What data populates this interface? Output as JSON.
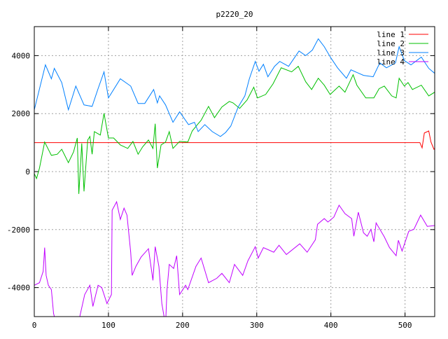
{
  "chart_data": {
    "type": "line",
    "title": "p2220_20",
    "xlabel": "",
    "ylabel": "",
    "xlim": [
      0,
      540
    ],
    "ylim": [
      -5000,
      5000
    ],
    "xticks": [
      0,
      100,
      200,
      300,
      400,
      500
    ],
    "yticks": [
      -4000,
      -2000,
      0,
      2000,
      4000
    ],
    "grid": true,
    "legend_position": "top-right",
    "series": [
      {
        "name": "line 1",
        "color": "#ff0000",
        "points": [
          [
            0,
            1000
          ],
          [
            520,
            1000
          ],
          [
            523,
            820
          ],
          [
            526,
            1330
          ],
          [
            532,
            1400
          ],
          [
            535,
            1020
          ],
          [
            539,
            770
          ],
          [
            540,
            800
          ]
        ]
      },
      {
        "name": "line 2",
        "color": "#00c000",
        "points": [
          [
            0,
            -70
          ],
          [
            3,
            -240
          ],
          [
            7,
            120
          ],
          [
            14,
            1020
          ],
          [
            23,
            560
          ],
          [
            31,
            600
          ],
          [
            37,
            770
          ],
          [
            46,
            310
          ],
          [
            53,
            680
          ],
          [
            58,
            1160
          ],
          [
            60,
            -770
          ],
          [
            64,
            970
          ],
          [
            67,
            -680
          ],
          [
            72,
            1090
          ],
          [
            75,
            1210
          ],
          [
            78,
            600
          ],
          [
            81,
            1380
          ],
          [
            89,
            1260
          ],
          [
            94,
            2010
          ],
          [
            100,
            1160
          ],
          [
            107,
            1160
          ],
          [
            116,
            920
          ],
          [
            126,
            800
          ],
          [
            133,
            1040
          ],
          [
            140,
            600
          ],
          [
            146,
            850
          ],
          [
            154,
            1090
          ],
          [
            160,
            800
          ],
          [
            163,
            1650
          ],
          [
            166,
            120
          ],
          [
            171,
            920
          ],
          [
            177,
            1020
          ],
          [
            182,
            1380
          ],
          [
            187,
            800
          ],
          [
            196,
            1040
          ],
          [
            207,
            1020
          ],
          [
            213,
            1400
          ],
          [
            220,
            1620
          ],
          [
            225,
            1770
          ],
          [
            235,
            2250
          ],
          [
            243,
            1860
          ],
          [
            253,
            2230
          ],
          [
            263,
            2420
          ],
          [
            268,
            2370
          ],
          [
            277,
            2180
          ],
          [
            287,
            2470
          ],
          [
            296,
            2910
          ],
          [
            301,
            2540
          ],
          [
            312,
            2660
          ],
          [
            322,
            3030
          ],
          [
            333,
            3580
          ],
          [
            347,
            3440
          ],
          [
            356,
            3630
          ],
          [
            366,
            3100
          ],
          [
            374,
            2830
          ],
          [
            383,
            3220
          ],
          [
            391,
            2980
          ],
          [
            399,
            2660
          ],
          [
            411,
            2950
          ],
          [
            419,
            2740
          ],
          [
            430,
            3340
          ],
          [
            435,
            2980
          ],
          [
            447,
            2540
          ],
          [
            458,
            2540
          ],
          [
            465,
            2860
          ],
          [
            472,
            2950
          ],
          [
            482,
            2610
          ],
          [
            488,
            2540
          ],
          [
            492,
            3220
          ],
          [
            499,
            2950
          ],
          [
            504,
            3070
          ],
          [
            510,
            2830
          ],
          [
            522,
            2980
          ],
          [
            532,
            2610
          ],
          [
            540,
            2740
          ]
        ]
      },
      {
        "name": "line 3",
        "color": "#0080ff",
        "points": [
          [
            0,
            2130
          ],
          [
            15,
            3680
          ],
          [
            23,
            3200
          ],
          [
            27,
            3560
          ],
          [
            37,
            3070
          ],
          [
            46,
            2130
          ],
          [
            56,
            2950
          ],
          [
            67,
            2300
          ],
          [
            78,
            2250
          ],
          [
            86,
            2860
          ],
          [
            94,
            3440
          ],
          [
            100,
            2540
          ],
          [
            116,
            3200
          ],
          [
            130,
            2950
          ],
          [
            140,
            2350
          ],
          [
            149,
            2350
          ],
          [
            161,
            2830
          ],
          [
            166,
            2370
          ],
          [
            169,
            2610
          ],
          [
            177,
            2300
          ],
          [
            187,
            1700
          ],
          [
            196,
            2060
          ],
          [
            208,
            1620
          ],
          [
            216,
            1700
          ],
          [
            221,
            1380
          ],
          [
            230,
            1620
          ],
          [
            240,
            1380
          ],
          [
            251,
            1210
          ],
          [
            258,
            1350
          ],
          [
            265,
            1570
          ],
          [
            275,
            2230
          ],
          [
            284,
            2610
          ],
          [
            290,
            3200
          ],
          [
            298,
            3800
          ],
          [
            303,
            3460
          ],
          [
            309,
            3700
          ],
          [
            315,
            3270
          ],
          [
            324,
            3630
          ],
          [
            331,
            3800
          ],
          [
            343,
            3630
          ],
          [
            357,
            4160
          ],
          [
            366,
            4000
          ],
          [
            375,
            4190
          ],
          [
            383,
            4580
          ],
          [
            391,
            4310
          ],
          [
            400,
            3920
          ],
          [
            409,
            3580
          ],
          [
            421,
            3220
          ],
          [
            427,
            3510
          ],
          [
            444,
            3320
          ],
          [
            457,
            3270
          ],
          [
            466,
            3750
          ],
          [
            475,
            3580
          ],
          [
            487,
            3750
          ],
          [
            492,
            4310
          ],
          [
            499,
            3830
          ],
          [
            508,
            3680
          ],
          [
            522,
            3950
          ],
          [
            532,
            3560
          ],
          [
            540,
            3390
          ]
        ]
      },
      {
        "name": "line 4",
        "color": "#c000ff",
        "points": [
          [
            0,
            -3920
          ],
          [
            7,
            -3830
          ],
          [
            12,
            -3440
          ],
          [
            14,
            -2620
          ],
          [
            16,
            -3580
          ],
          [
            19,
            -3920
          ],
          [
            23,
            -4070
          ],
          [
            26,
            -4890
          ],
          [
            30,
            -5300
          ],
          [
            58,
            -5300
          ],
          [
            61,
            -5040
          ],
          [
            68,
            -4240
          ],
          [
            75,
            -3920
          ],
          [
            79,
            -4650
          ],
          [
            86,
            -3920
          ],
          [
            91,
            -4000
          ],
          [
            98,
            -4550
          ],
          [
            104,
            -4240
          ],
          [
            105,
            -1330
          ],
          [
            111,
            -1040
          ],
          [
            116,
            -1650
          ],
          [
            121,
            -1260
          ],
          [
            125,
            -1500
          ],
          [
            130,
            -2780
          ],
          [
            132,
            -3580
          ],
          [
            137,
            -3270
          ],
          [
            144,
            -2950
          ],
          [
            154,
            -2660
          ],
          [
            160,
            -3750
          ],
          [
            163,
            -2590
          ],
          [
            168,
            -3270
          ],
          [
            172,
            -4550
          ],
          [
            177,
            -5300
          ],
          [
            179,
            -4070
          ],
          [
            182,
            -3200
          ],
          [
            188,
            -3340
          ],
          [
            192,
            -2900
          ],
          [
            196,
            -4240
          ],
          [
            204,
            -3920
          ],
          [
            207,
            -4070
          ],
          [
            218,
            -3270
          ],
          [
            225,
            -2980
          ],
          [
            235,
            -3830
          ],
          [
            246,
            -3680
          ],
          [
            253,
            -3510
          ],
          [
            263,
            -3830
          ],
          [
            270,
            -3200
          ],
          [
            281,
            -3580
          ],
          [
            288,
            -3080
          ],
          [
            298,
            -2590
          ],
          [
            302,
            -2980
          ],
          [
            309,
            -2620
          ],
          [
            323,
            -2780
          ],
          [
            330,
            -2540
          ],
          [
            340,
            -2860
          ],
          [
            358,
            -2490
          ],
          [
            368,
            -2780
          ],
          [
            379,
            -2350
          ],
          [
            382,
            -1820
          ],
          [
            391,
            -1620
          ],
          [
            396,
            -1740
          ],
          [
            404,
            -1570
          ],
          [
            411,
            -1160
          ],
          [
            419,
            -1450
          ],
          [
            428,
            -1620
          ],
          [
            431,
            -2230
          ],
          [
            437,
            -1400
          ],
          [
            444,
            -2110
          ],
          [
            449,
            -2230
          ],
          [
            454,
            -1990
          ],
          [
            458,
            -2420
          ],
          [
            461,
            -1770
          ],
          [
            472,
            -2250
          ],
          [
            479,
            -2620
          ],
          [
            488,
            -2900
          ],
          [
            491,
            -2370
          ],
          [
            496,
            -2740
          ],
          [
            505,
            -2060
          ],
          [
            512,
            -1990
          ],
          [
            521,
            -1500
          ],
          [
            530,
            -1890
          ],
          [
            540,
            -1860
          ]
        ]
      }
    ]
  }
}
